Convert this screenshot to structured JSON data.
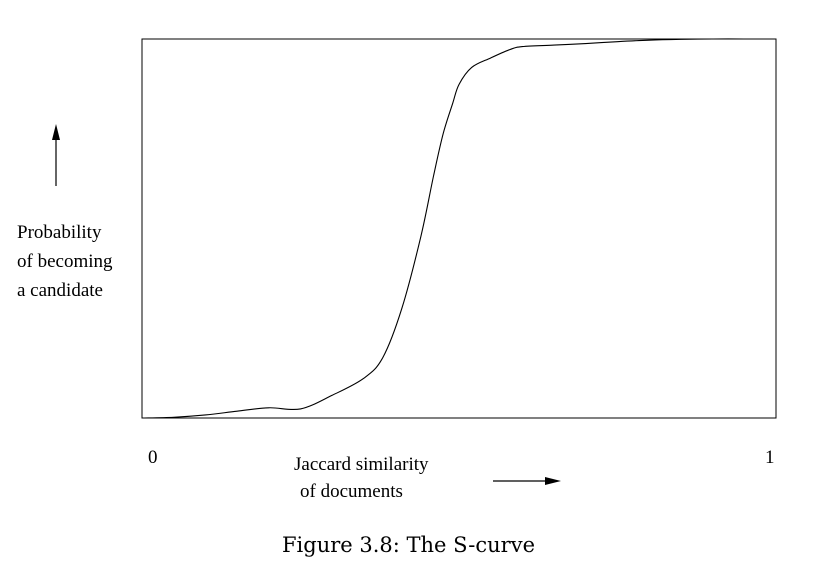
{
  "chart_data": {
    "type": "line",
    "xlabel": [
      "Jaccard similarity",
      "of documents"
    ],
    "ylabel": [
      "Probability",
      "of becoming",
      "a candidate"
    ],
    "xlim": [
      0,
      1
    ],
    "ylim": [
      0,
      1
    ],
    "x_tick_labels": [
      "0",
      "1"
    ],
    "grid": false,
    "series": [
      {
        "x": [
          0.0,
          0.05,
          0.1,
          0.15,
          0.2,
          0.25,
          0.3,
          0.35,
          0.38,
          0.41,
          0.44,
          0.46,
          0.475,
          0.49,
          0.5,
          0.52,
          0.55,
          0.58,
          0.6,
          0.65,
          0.7,
          0.75,
          0.8,
          0.85,
          0.9,
          0.95,
          1.0
        ],
        "y": [
          0.0,
          0.002,
          0.008,
          0.018,
          0.027,
          0.024,
          0.06,
          0.105,
          0.16,
          0.29,
          0.48,
          0.64,
          0.75,
          0.83,
          0.88,
          0.925,
          0.95,
          0.972,
          0.98,
          0.984,
          0.988,
          0.993,
          0.997,
          0.999,
          1.0,
          1.0,
          1.0
        ]
      }
    ]
  },
  "caption": "Figure 3.8:  The S-curve"
}
